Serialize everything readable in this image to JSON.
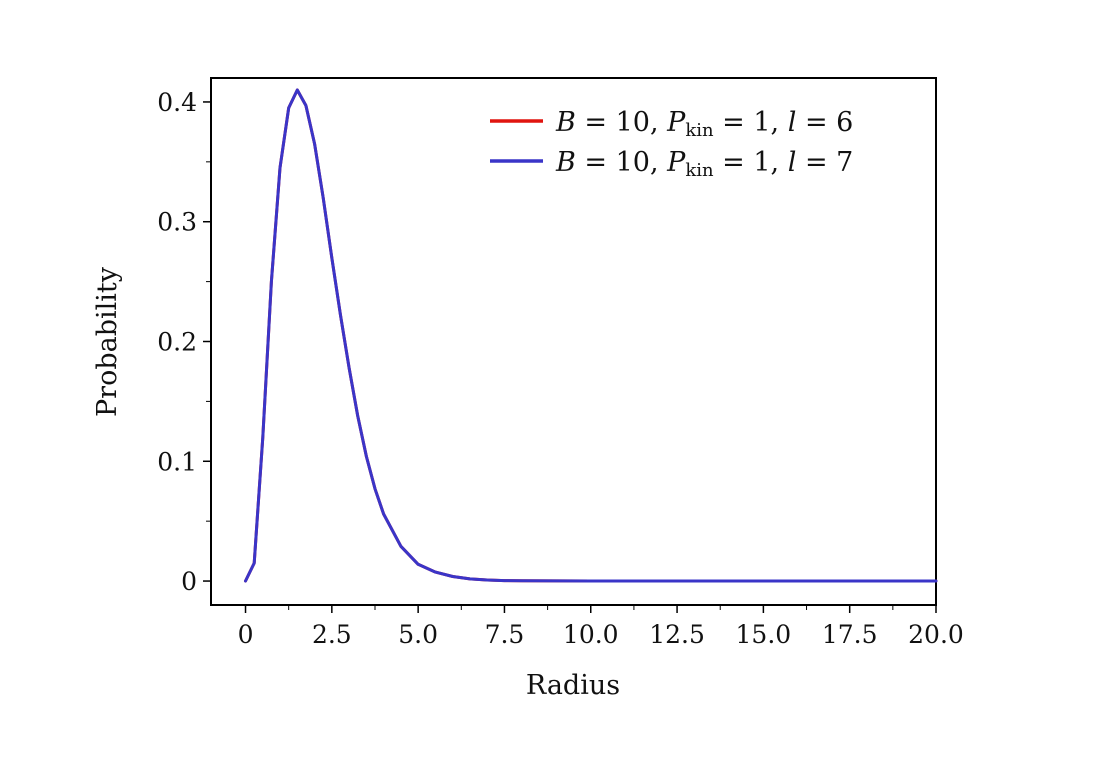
{
  "chart_data": {
    "type": "line",
    "xlabel": "Radius",
    "ylabel": "Probability",
    "xlim": [
      -1.0,
      20.0
    ],
    "ylim": [
      -0.02,
      0.42
    ],
    "xticks": [
      0,
      2.5,
      5.0,
      7.5,
      10.0,
      12.5,
      15.0,
      17.5,
      20.0
    ],
    "xtick_labels": [
      "0",
      "2.5",
      "5.0",
      "7.5",
      "10.0",
      "12.5",
      "15.0",
      "17.5",
      "20.0"
    ],
    "yticks": [
      0,
      0.1,
      0.2,
      0.3,
      0.4
    ],
    "ytick_labels": [
      "0",
      "0.1",
      "0.2",
      "0.3",
      "0.4"
    ],
    "grid": false,
    "legend_position": "top-right",
    "series": [
      {
        "name": "B = 10, Pkin = 1, l = 6",
        "name_parts": {
          "B": "B",
          "eq1": " = 10, ",
          "P": "P",
          "sub": "kin",
          "eq2": " = 1, ",
          "l": "l",
          "eq3": " = 6"
        },
        "color": "#e0140f",
        "x": [
          0,
          0.25,
          0.5,
          0.75,
          1.0,
          1.25,
          1.5,
          1.75,
          2.0,
          2.25,
          2.5,
          2.75,
          3.0,
          3.25,
          3.5,
          3.75,
          4.0,
          4.5,
          5.0,
          5.5,
          6.0,
          6.5,
          7.0,
          7.5,
          8.0,
          9.0,
          10.0,
          12.5,
          15.0,
          17.5,
          20.0
        ],
        "y": [
          0,
          0.015,
          0.12,
          0.25,
          0.345,
          0.395,
          0.41,
          0.397,
          0.365,
          0.32,
          0.27,
          0.222,
          0.178,
          0.138,
          0.104,
          0.077,
          0.056,
          0.029,
          0.014,
          0.0075,
          0.0038,
          0.0018,
          0.0009,
          0.0004,
          0.0002,
          0.0001,
          0,
          0,
          0,
          0,
          0
        ]
      },
      {
        "name": "B = 10, Pkin = 1, l = 7",
        "name_parts": {
          "B": "B",
          "eq1": " = 10, ",
          "P": "P",
          "sub": "kin",
          "eq2": " = 1, ",
          "l": "l",
          "eq3": " = 7"
        },
        "color": "#3a35c8",
        "x": [
          0,
          0.25,
          0.5,
          0.75,
          1.0,
          1.25,
          1.5,
          1.75,
          2.0,
          2.25,
          2.5,
          2.75,
          3.0,
          3.25,
          3.5,
          3.75,
          4.0,
          4.5,
          5.0,
          5.5,
          6.0,
          6.5,
          7.0,
          7.5,
          8.0,
          9.0,
          10.0,
          12.5,
          15.0,
          17.5,
          20.0
        ],
        "y": [
          0,
          0.015,
          0.12,
          0.25,
          0.345,
          0.395,
          0.41,
          0.397,
          0.365,
          0.32,
          0.27,
          0.222,
          0.178,
          0.138,
          0.104,
          0.077,
          0.056,
          0.029,
          0.014,
          0.0075,
          0.0038,
          0.0018,
          0.0009,
          0.0004,
          0.0002,
          0.0001,
          0,
          0,
          0,
          0,
          0
        ]
      }
    ]
  }
}
